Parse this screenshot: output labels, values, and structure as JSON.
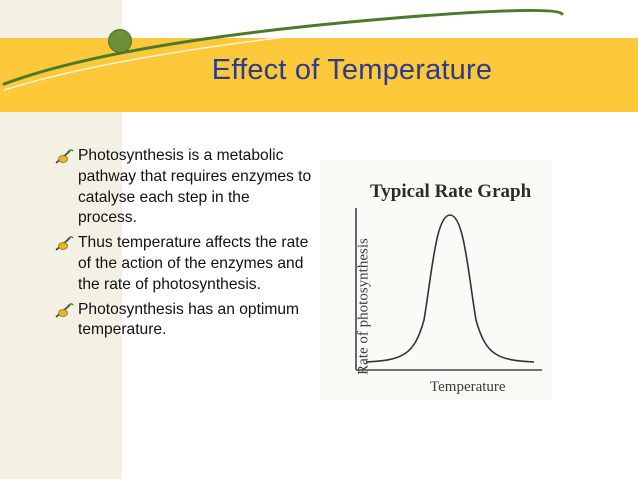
{
  "slide": {
    "title": "Effect of Temperature",
    "bullets": [
      "Photosynthesis is a metabolic pathway that requires enzymes to catalyse each step in the process.",
      "Thus temperature affects the rate of the action of the enzymes and the rate of photosynthesis.",
      "Photosynthesis has an optimum temperature."
    ],
    "bullet_icon": "leaf-bullet-icon"
  },
  "figure": {
    "title": "Typical Rate Graph",
    "ylabel": "Rate of photosynthesis",
    "xlabel": "Temperature"
  },
  "colors": {
    "title_text": "#2b3b8f",
    "title_band": "#fdc83a",
    "left_band": "#f4f1e4",
    "accent_curve": "#4d7a2a"
  }
}
